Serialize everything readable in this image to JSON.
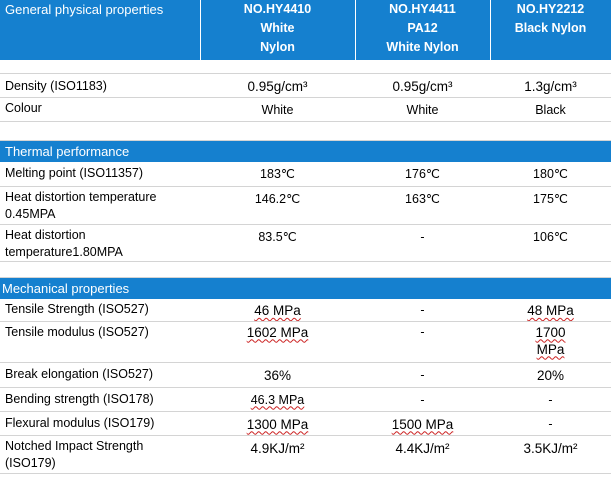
{
  "header": {
    "section_title": "General physical properties",
    "products": [
      {
        "lines": [
          "NO.HY4410",
          "White",
          "Nylon"
        ]
      },
      {
        "lines": [
          "NO.HY4411",
          "PA12",
          "White  Nylon"
        ]
      },
      {
        "lines": [
          "NO.HY2212",
          "Black Nylon"
        ]
      }
    ]
  },
  "general_rows": [
    {
      "label": "Density (ISO1183)",
      "values": [
        "0.95g/cm³",
        "0.95g/cm³",
        "1.3g/cm³"
      ]
    },
    {
      "label": "Colour",
      "values": [
        "White",
        "White",
        "Black"
      ]
    }
  ],
  "thermal": {
    "title": "Thermal performance",
    "rows": [
      {
        "label": "Melting point (ISO11357)",
        "values": [
          "183℃",
          "176℃",
          "180℃"
        ]
      },
      {
        "label": "Heat distortion temperature 0.45MPA",
        "values": [
          "146.2℃",
          "163℃",
          "175℃"
        ]
      },
      {
        "label": "Heat distortion temperature1.80MPA",
        "values": [
          "83.5℃",
          "-",
          "106℃"
        ]
      }
    ]
  },
  "mechanical": {
    "title": "Mechanical properties",
    "rows": [
      {
        "label": "Tensile Strength (ISO527)",
        "values": [
          "46 MPa",
          "-",
          "48 MPa"
        ]
      },
      {
        "label": "Tensile modulus (ISO527)",
        "values": [
          "1602 MPa",
          "-",
          "1700 MPa"
        ]
      },
      {
        "label": "Break elongation (ISO527)",
        "values": [
          "36%",
          "-",
          "20%"
        ]
      },
      {
        "label": "Bending strength (ISO178)",
        "values": [
          "46.3 MPa",
          "-",
          "-"
        ]
      },
      {
        "label": "Flexural modulus (ISO179)",
        "values": [
          "1300 MPa",
          "1500 MPa",
          "-"
        ]
      },
      {
        "label": "Notched Impact Strength (ISO179)",
        "values": [
          "4.9KJ/m²",
          "4.4KJ/m²",
          "3.5KJ/m²"
        ]
      }
    ]
  },
  "colors": {
    "header_blue": "#1580cf",
    "grid": "#d4d4d4",
    "spellcheck": "#cc2222"
  }
}
